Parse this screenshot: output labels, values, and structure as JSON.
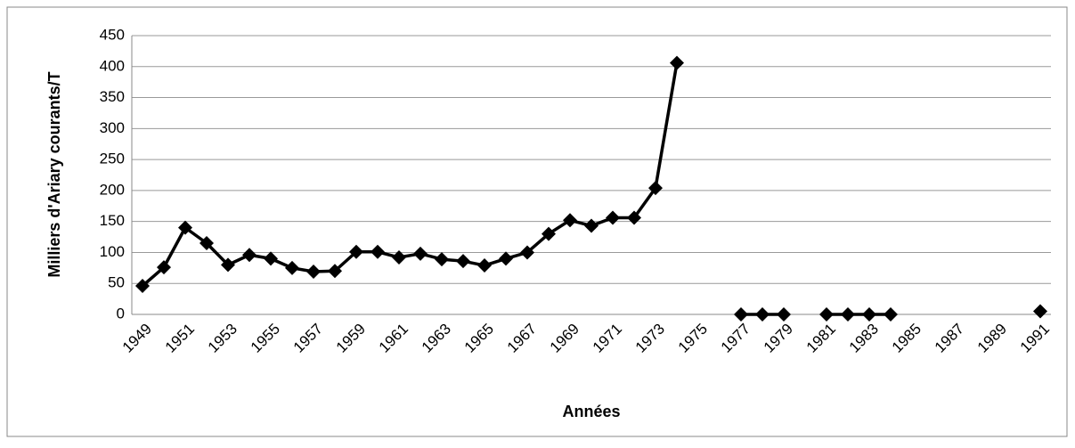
{
  "chart_data": {
    "type": "line",
    "ylabel": "Milliers d'Ariary courants/T",
    "xlabel": "Années",
    "categories": [
      "1949",
      null,
      "1951",
      null,
      "1953",
      null,
      "1955",
      null,
      "1957",
      null,
      "1959",
      null,
      "1961",
      null,
      "1963",
      null,
      "1965",
      null,
      "1967",
      null,
      "1969",
      null,
      "1971",
      null,
      "1973",
      null,
      "1975",
      null,
      "1977",
      null,
      "1979",
      null,
      "1981",
      null,
      "1983",
      null,
      "1985",
      null,
      "1987",
      null,
      "1989",
      null,
      "1991"
    ],
    "series": [
      {
        "name": null,
        "color": "#000000",
        "values": [
          46,
          76,
          140,
          115,
          80,
          96,
          90,
          75,
          69,
          70,
          101,
          101,
          92,
          98,
          89,
          86,
          79,
          90,
          100,
          130,
          152,
          143,
          156,
          156,
          204,
          406,
          null,
          null,
          0,
          0,
          0,
          null,
          0,
          0,
          0,
          0,
          null,
          null,
          null,
          null,
          null,
          null,
          5
        ]
      }
    ],
    "ylim": [
      0,
      450
    ],
    "yticks": [
      0,
      50,
      100,
      150,
      200,
      250,
      300,
      350,
      400,
      450
    ],
    "grid": true
  }
}
